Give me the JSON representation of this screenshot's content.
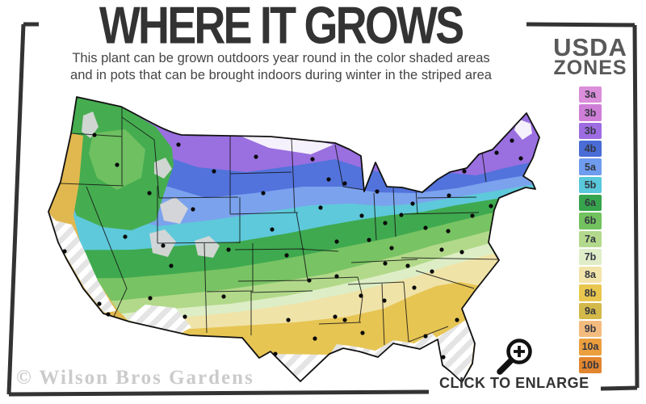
{
  "header": {
    "title": "WHERE IT GROWS",
    "subtitle_line1": "This plant can be grown outdoors year round in the color shaded areas",
    "subtitle_line2": "and in pots that can be brought indoors during winter in the striped area"
  },
  "legend": {
    "title_line1": "USDA",
    "title_line2": "ZONES",
    "zones": [
      {
        "label": "3a",
        "color": "#db8ed9"
      },
      {
        "label": "3b",
        "color": "#cf7ed8"
      },
      {
        "label": "3b",
        "color": "#9e6ce2"
      },
      {
        "label": "4b",
        "color": "#4a6cd6"
      },
      {
        "label": "5a",
        "color": "#6f9cee"
      },
      {
        "label": "5b",
        "color": "#59c8da"
      },
      {
        "label": "6a",
        "color": "#36a44c"
      },
      {
        "label": "6b",
        "color": "#72c25f"
      },
      {
        "label": "7a",
        "color": "#b3d98c"
      },
      {
        "label": "7b",
        "color": "#dfeec9"
      },
      {
        "label": "8a",
        "color": "#f2e4a9"
      },
      {
        "label": "8b",
        "color": "#e9c74f"
      },
      {
        "label": "9a",
        "color": "#d3b94a"
      },
      {
        "label": "9b",
        "color": "#f3bc7e"
      },
      {
        "label": "10a",
        "color": "#ec9f3e"
      },
      {
        "label": "10b",
        "color": "#e2852f"
      }
    ]
  },
  "map": {
    "city_dots": [
      [
        72,
        62
      ],
      [
        100,
        99
      ],
      [
        35,
        206
      ],
      [
        78,
        271
      ],
      [
        89,
        284
      ],
      [
        110,
        188
      ],
      [
        140,
        134
      ],
      [
        176,
        74
      ],
      [
        220,
        107
      ],
      [
        194,
        154
      ],
      [
        157,
        199
      ],
      [
        167,
        224
      ],
      [
        141,
        264
      ],
      [
        184,
        287
      ],
      [
        238,
        204
      ],
      [
        232,
        262
      ],
      [
        272,
        89
      ],
      [
        281,
        134
      ],
      [
        292,
        179
      ],
      [
        310,
        211
      ],
      [
        338,
        242
      ],
      [
        312,
        291
      ],
      [
        345,
        314
      ],
      [
        370,
        287
      ],
      [
        296,
        333
      ],
      [
        342,
        92
      ],
      [
        362,
        117
      ],
      [
        352,
        152
      ],
      [
        372,
        194
      ],
      [
        372,
        237
      ],
      [
        382,
        291
      ],
      [
        404,
        307
      ],
      [
        382,
        122
      ],
      [
        403,
        162
      ],
      [
        412,
        192
      ],
      [
        422,
        132
      ],
      [
        432,
        171
      ],
      [
        452,
        161
      ],
      [
        466,
        147
      ],
      [
        440,
        202
      ],
      [
        432,
        221
      ],
      [
        460,
        224
      ],
      [
        402,
        261
      ],
      [
        431,
        267
      ],
      [
        468,
        251
      ],
      [
        482,
        311
      ],
      [
        504,
        337
      ],
      [
        521,
        291
      ],
      [
        490,
        231
      ],
      [
        502,
        204
      ],
      [
        527,
        207
      ],
      [
        510,
        181
      ],
      [
        482,
        177
      ],
      [
        511,
        137
      ],
      [
        530,
        107
      ],
      [
        570,
        84
      ],
      [
        589,
        69
      ],
      [
        600,
        91
      ],
      [
        540,
        162
      ],
      [
        563,
        150
      ]
    ]
  },
  "footer": {
    "watermark": "© Wilson Bros Gardens",
    "enlarge_label": "CLICK TO ENLARGE"
  }
}
